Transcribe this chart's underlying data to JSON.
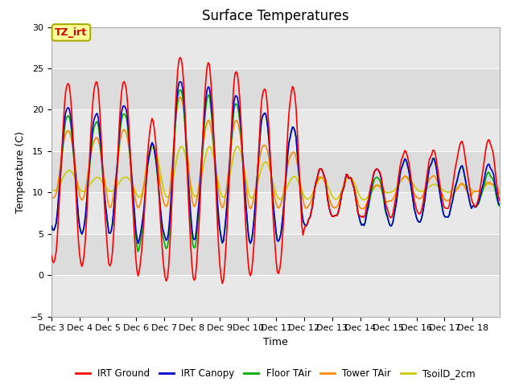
{
  "title": "Surface Temperatures",
  "xlabel": "Time",
  "ylabel": "Temperature (C)",
  "ylim": [
    -5,
    30
  ],
  "xlim": [
    0,
    384
  ],
  "x_tick_labels": [
    "Dec 3",
    "Dec 4",
    "Dec 5",
    "Dec 6",
    "Dec 7",
    "Dec 8",
    "Dec 9",
    "Dec 10",
    "Dec 11",
    "Dec 12",
    "Dec 13",
    "Dec 14",
    "Dec 15",
    "Dec 16",
    "Dec 17",
    "Dec 18"
  ],
  "x_tick_positions": [
    0,
    24,
    48,
    72,
    96,
    120,
    144,
    168,
    192,
    216,
    240,
    264,
    288,
    312,
    336,
    360
  ],
  "annotation_text": "TZ_irt",
  "annotation_color": "#cc0000",
  "annotation_bg": "#ffff99",
  "annotation_border": "#aaaa00",
  "colors": {
    "IRT Ground": "#ff0000",
    "IRT Canopy": "#0000cc",
    "Floor TAir": "#00aa00",
    "Tower TAir": "#ff8800",
    "TsoilD_2cm": "#cccc00"
  },
  "legend_labels": [
    "IRT Ground",
    "IRT Canopy",
    "Floor TAir",
    "Tower TAir",
    "TsoilD_2cm"
  ],
  "plot_bg_color": "#e8e8e8",
  "band_colors": [
    "#d0d0d0",
    "#e8e8e8"
  ],
  "title_fontsize": 12,
  "axis_label_fontsize": 9,
  "tick_fontsize": 8,
  "line_width": 1.2,
  "n_hours": 384
}
